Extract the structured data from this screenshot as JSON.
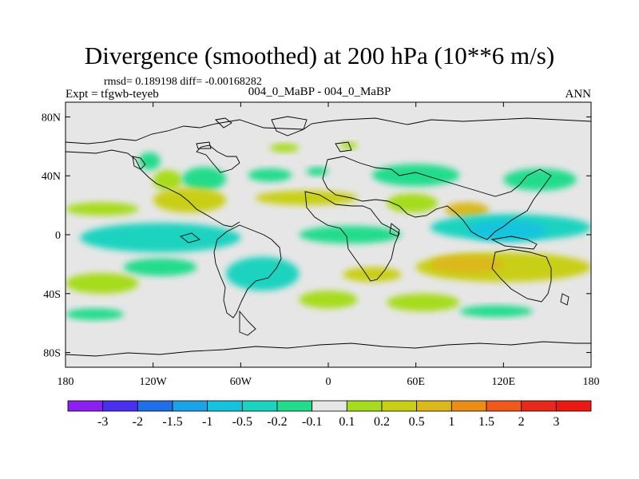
{
  "chart_data": {
    "type": "heatmap",
    "title": "Divergence (smoothed) at 200 hPa (10**6 m/s)",
    "stats": "rmsd= 0.189198 diff= -0.00168282",
    "experiment": "Expt = tfgwb-teyeb",
    "cases": "004_0_MaBP - 004_0_MaBP",
    "season": "ANN",
    "xlim": [
      -180,
      180
    ],
    "ylim": [
      -90,
      90
    ],
    "x_ticks": [
      {
        "value": -180,
        "label": "180"
      },
      {
        "value": -120,
        "label": "120W"
      },
      {
        "value": -60,
        "label": "60W"
      },
      {
        "value": 0,
        "label": "0"
      },
      {
        "value": 60,
        "label": "60E"
      },
      {
        "value": 120,
        "label": "120E"
      },
      {
        "value": 180,
        "label": "180"
      }
    ],
    "y_ticks": [
      {
        "value": 80,
        "label": "80N"
      },
      {
        "value": 40,
        "label": "40N"
      },
      {
        "value": 0,
        "label": "0"
      },
      {
        "value": -40,
        "label": "40S"
      },
      {
        "value": -80,
        "label": "80S"
      }
    ],
    "levels": [
      "-3",
      "-2",
      "-1.5",
      "-1",
      "-0.5",
      "-0.2",
      "-0.1",
      "0.1",
      "0.2",
      "0.5",
      "1",
      "1.5",
      "2",
      "3"
    ],
    "colors": [
      "#8d1ff0",
      "#4b2ff0",
      "#1e6fe8",
      "#1aa3e8",
      "#14c4de",
      "#1ad3c0",
      "#22dc8c",
      "#e6e6e6",
      "#a6dc1e",
      "#c9cf14",
      "#dcb81a",
      "#ec8e16",
      "#f0581c",
      "#e8281a",
      "#ec1812"
    ],
    "fields": [
      {
        "value": 0.15,
        "lon_range": [
          -40,
          -20
        ],
        "lat_range": [
          56,
          62
        ]
      },
      {
        "value": 0.15,
        "lon_range": [
          8,
          20
        ],
        "lat_range": [
          58,
          63
        ]
      },
      {
        "value": -0.15,
        "lon_range": [
          -130,
          -115
        ],
        "lat_range": [
          44,
          56
        ]
      },
      {
        "value": 0.15,
        "lon_range": [
          -120,
          -100
        ],
        "lat_range": [
          30,
          44
        ]
      },
      {
        "value": -0.15,
        "lon_range": [
          -100,
          -70
        ],
        "lat_range": [
          30,
          46
        ]
      },
      {
        "value": -0.15,
        "lon_range": [
          -55,
          -25
        ],
        "lat_range": [
          36,
          45
        ]
      },
      {
        "value": -0.15,
        "lon_range": [
          -15,
          0
        ],
        "lat_range": [
          40,
          46
        ]
      },
      {
        "value": -0.15,
        "lon_range": [
          30,
          90
        ],
        "lat_range": [
          33,
          48
        ]
      },
      {
        "value": -0.15,
        "lon_range": [
          120,
          170
        ],
        "lat_range": [
          30,
          45
        ]
      },
      {
        "value": 0.15,
        "lon_range": [
          -180,
          -130
        ],
        "lat_range": [
          13,
          22
        ]
      },
      {
        "value": 0.3,
        "lon_range": [
          -120,
          -70
        ],
        "lat_range": [
          15,
          32
        ]
      },
      {
        "value": 0.3,
        "lon_range": [
          -50,
          20
        ],
        "lat_range": [
          20,
          30
        ]
      },
      {
        "value": 0.15,
        "lon_range": [
          40,
          75
        ],
        "lat_range": [
          15,
          28
        ]
      },
      {
        "value": 0.6,
        "lon_range": [
          80,
          110
        ],
        "lat_range": [
          12,
          22
        ]
      },
      {
        "value": -0.3,
        "lon_range": [
          -170,
          -60
        ],
        "lat_range": [
          -12,
          8
        ]
      },
      {
        "value": -0.15,
        "lon_range": [
          -20,
          50
        ],
        "lat_range": [
          -6,
          6
        ]
      },
      {
        "value": -0.3,
        "lon_range": [
          70,
          180
        ],
        "lat_range": [
          -4,
          14
        ]
      },
      {
        "value": -0.6,
        "lon_range": [
          95,
          150
        ],
        "lat_range": [
          -4,
          10
        ]
      },
      {
        "value": 0.3,
        "lon_range": [
          60,
          180
        ],
        "lat_range": [
          -32,
          -12
        ]
      },
      {
        "value": 0.8,
        "lon_range": [
          70,
          120
        ],
        "lat_range": [
          -26,
          -14
        ]
      },
      {
        "value": -0.2,
        "lon_range": [
          -140,
          -90
        ],
        "lat_range": [
          -28,
          -16
        ]
      },
      {
        "value": -0.3,
        "lon_range": [
          -70,
          -20
        ],
        "lat_range": [
          -38,
          -15
        ]
      },
      {
        "value": 0.15,
        "lon_range": [
          -180,
          -130
        ],
        "lat_range": [
          -40,
          -26
        ]
      },
      {
        "value": 0.3,
        "lon_range": [
          10,
          50
        ],
        "lat_range": [
          -32,
          -22
        ]
      },
      {
        "value": 0.15,
        "lon_range": [
          -20,
          20
        ],
        "lat_range": [
          -50,
          -38
        ]
      },
      {
        "value": 0.15,
        "lon_range": [
          40,
          90
        ],
        "lat_range": [
          -52,
          -40
        ]
      },
      {
        "value": -0.15,
        "lon_range": [
          -180,
          -140
        ],
        "lat_range": [
          -58,
          -50
        ]
      },
      {
        "value": -0.15,
        "lon_range": [
          90,
          140
        ],
        "lat_range": [
          -56,
          -48
        ]
      }
    ]
  }
}
